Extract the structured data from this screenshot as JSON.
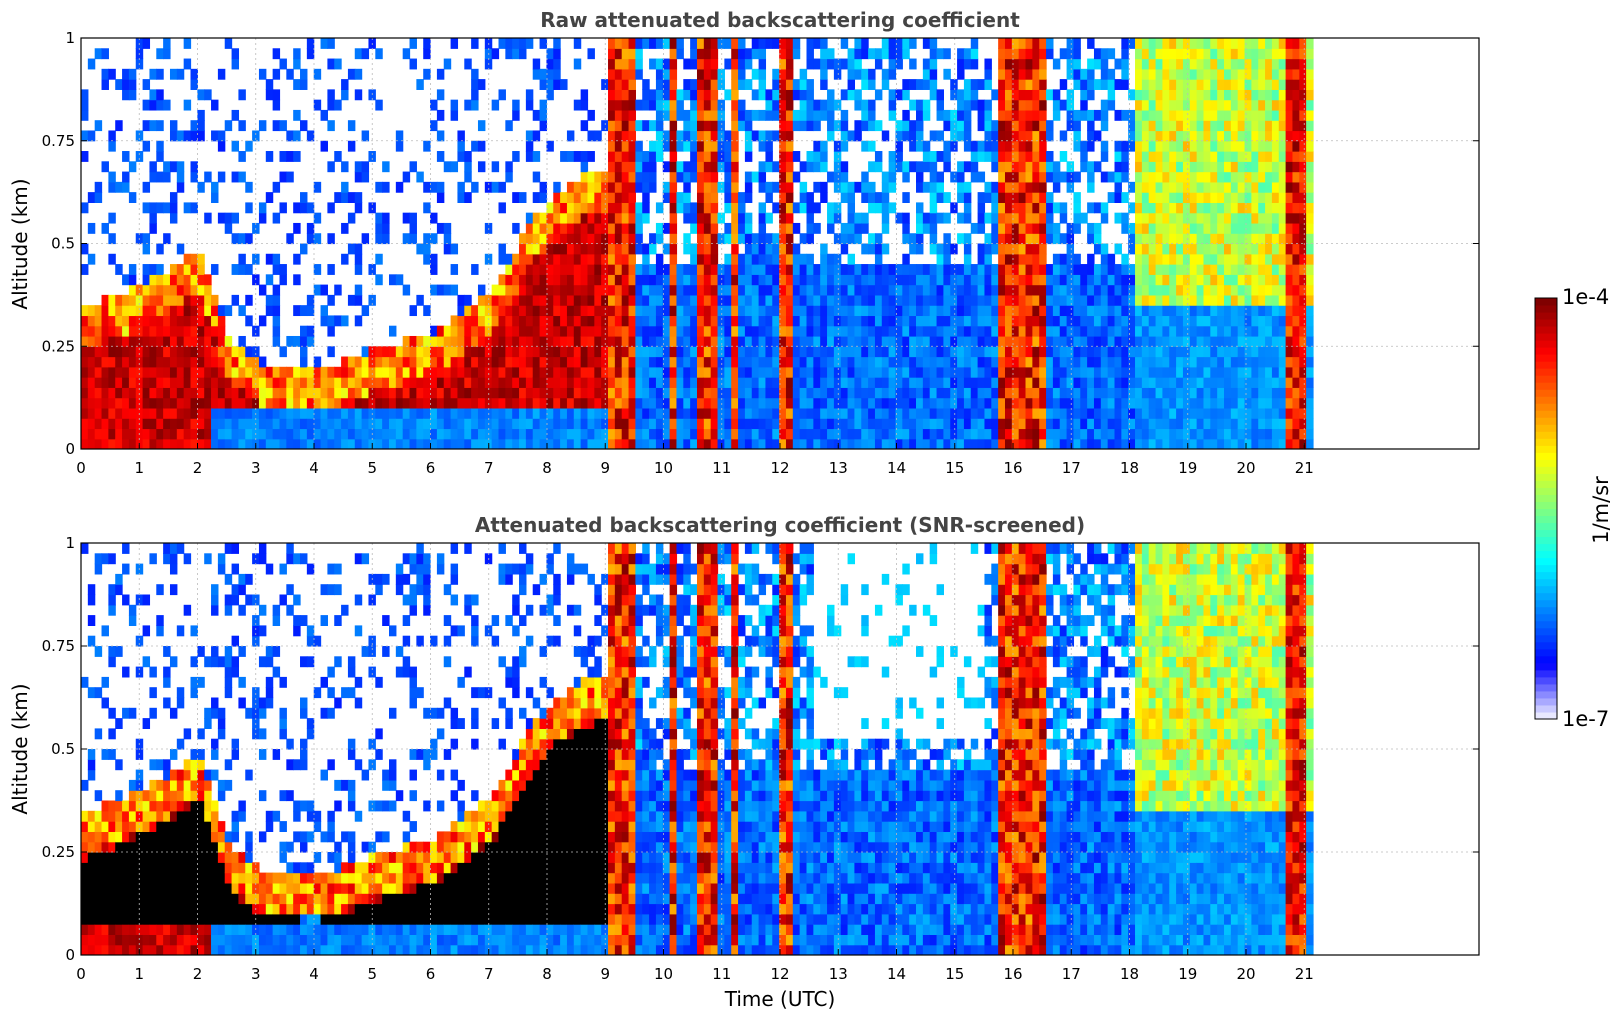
{
  "chart_data": [
    {
      "type": "heatmap",
      "title": "Raw attenuated backscattering coefficient",
      "xlabel": "",
      "ylabel": "Altitude (km)",
      "xlim": [
        0,
        24
      ],
      "ylim": [
        0,
        1
      ],
      "x_ticks": [
        "0",
        "1",
        "2",
        "3",
        "4",
        "5",
        "6",
        "7",
        "8",
        "9",
        "10",
        "11",
        "12",
        "13",
        "14",
        "15",
        "16",
        "17",
        "18",
        "19",
        "20",
        "21"
      ],
      "y_ticks": [
        "0",
        "0.25",
        "0.5",
        "0.75",
        "1"
      ],
      "grid": true,
      "data_end_time": 21.15,
      "colorscale": "jet",
      "screened": false
    },
    {
      "type": "heatmap",
      "title": "Attenuated backscattering coefficient (SNR-screened)",
      "xlabel": "Time (UTC)",
      "ylabel": "Altitude (km)",
      "xlim": [
        0,
        24
      ],
      "ylim": [
        0,
        1
      ],
      "x_ticks": [
        "0",
        "1",
        "2",
        "3",
        "4",
        "5",
        "6",
        "7",
        "8",
        "9",
        "10",
        "11",
        "12",
        "13",
        "14",
        "15",
        "16",
        "17",
        "18",
        "19",
        "20",
        "21"
      ],
      "y_ticks": [
        "0",
        "0.25",
        "0.5",
        "0.75",
        "1"
      ],
      "grid": true,
      "data_end_time": 21.15,
      "colorscale": "jet",
      "screened": true
    }
  ],
  "colorbar": {
    "label": "1/m/sr",
    "max_label": "1e-4",
    "min_label": "1e-7",
    "colors": [
      "#e8e8ff",
      "#0000ff",
      "#0080ff",
      "#00ffff",
      "#80ff80",
      "#ffff00",
      "#ff8000",
      "#ff0000",
      "#800000"
    ]
  }
}
